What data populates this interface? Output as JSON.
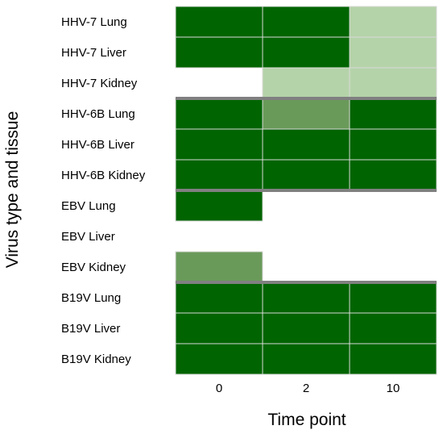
{
  "chart_data": {
    "type": "heatmap",
    "xlabel": "Time point",
    "ylabel": "Virus type and tissue",
    "x_categories": [
      "0",
      "2",
      "10"
    ],
    "y_categories": [
      "HHV-7 Lung",
      "HHV-7 Liver",
      "HHV-7 Kidney",
      "HHV-6B Lung",
      "HHV-6B Liver",
      "HHV-6B Kidney",
      "EBV Lung",
      "EBV Liver",
      "EBV Kidney",
      "B19V Lung",
      "B19V Liver",
      "B19V Kidney"
    ],
    "values": [
      [
        3,
        3,
        1
      ],
      [
        3,
        3,
        1
      ],
      [
        0,
        1,
        1
      ],
      [
        3,
        2,
        3
      ],
      [
        3,
        3,
        3
      ],
      [
        3,
        3,
        3
      ],
      [
        3,
        0,
        0
      ],
      [
        0,
        0,
        0
      ],
      [
        2,
        0,
        0
      ],
      [
        3,
        3,
        3
      ],
      [
        3,
        3,
        3
      ],
      [
        3,
        3,
        3
      ]
    ],
    "level_colors": {
      "0": "#ffffff",
      "1": "#b5d3a9",
      "2": "#6a9a5a",
      "3": "#006400"
    },
    "group_separators_after_rows": [
      2,
      5,
      8
    ],
    "separator_color": "#808080",
    "cell_border_color": "#d9d9d9",
    "legend": "none"
  }
}
